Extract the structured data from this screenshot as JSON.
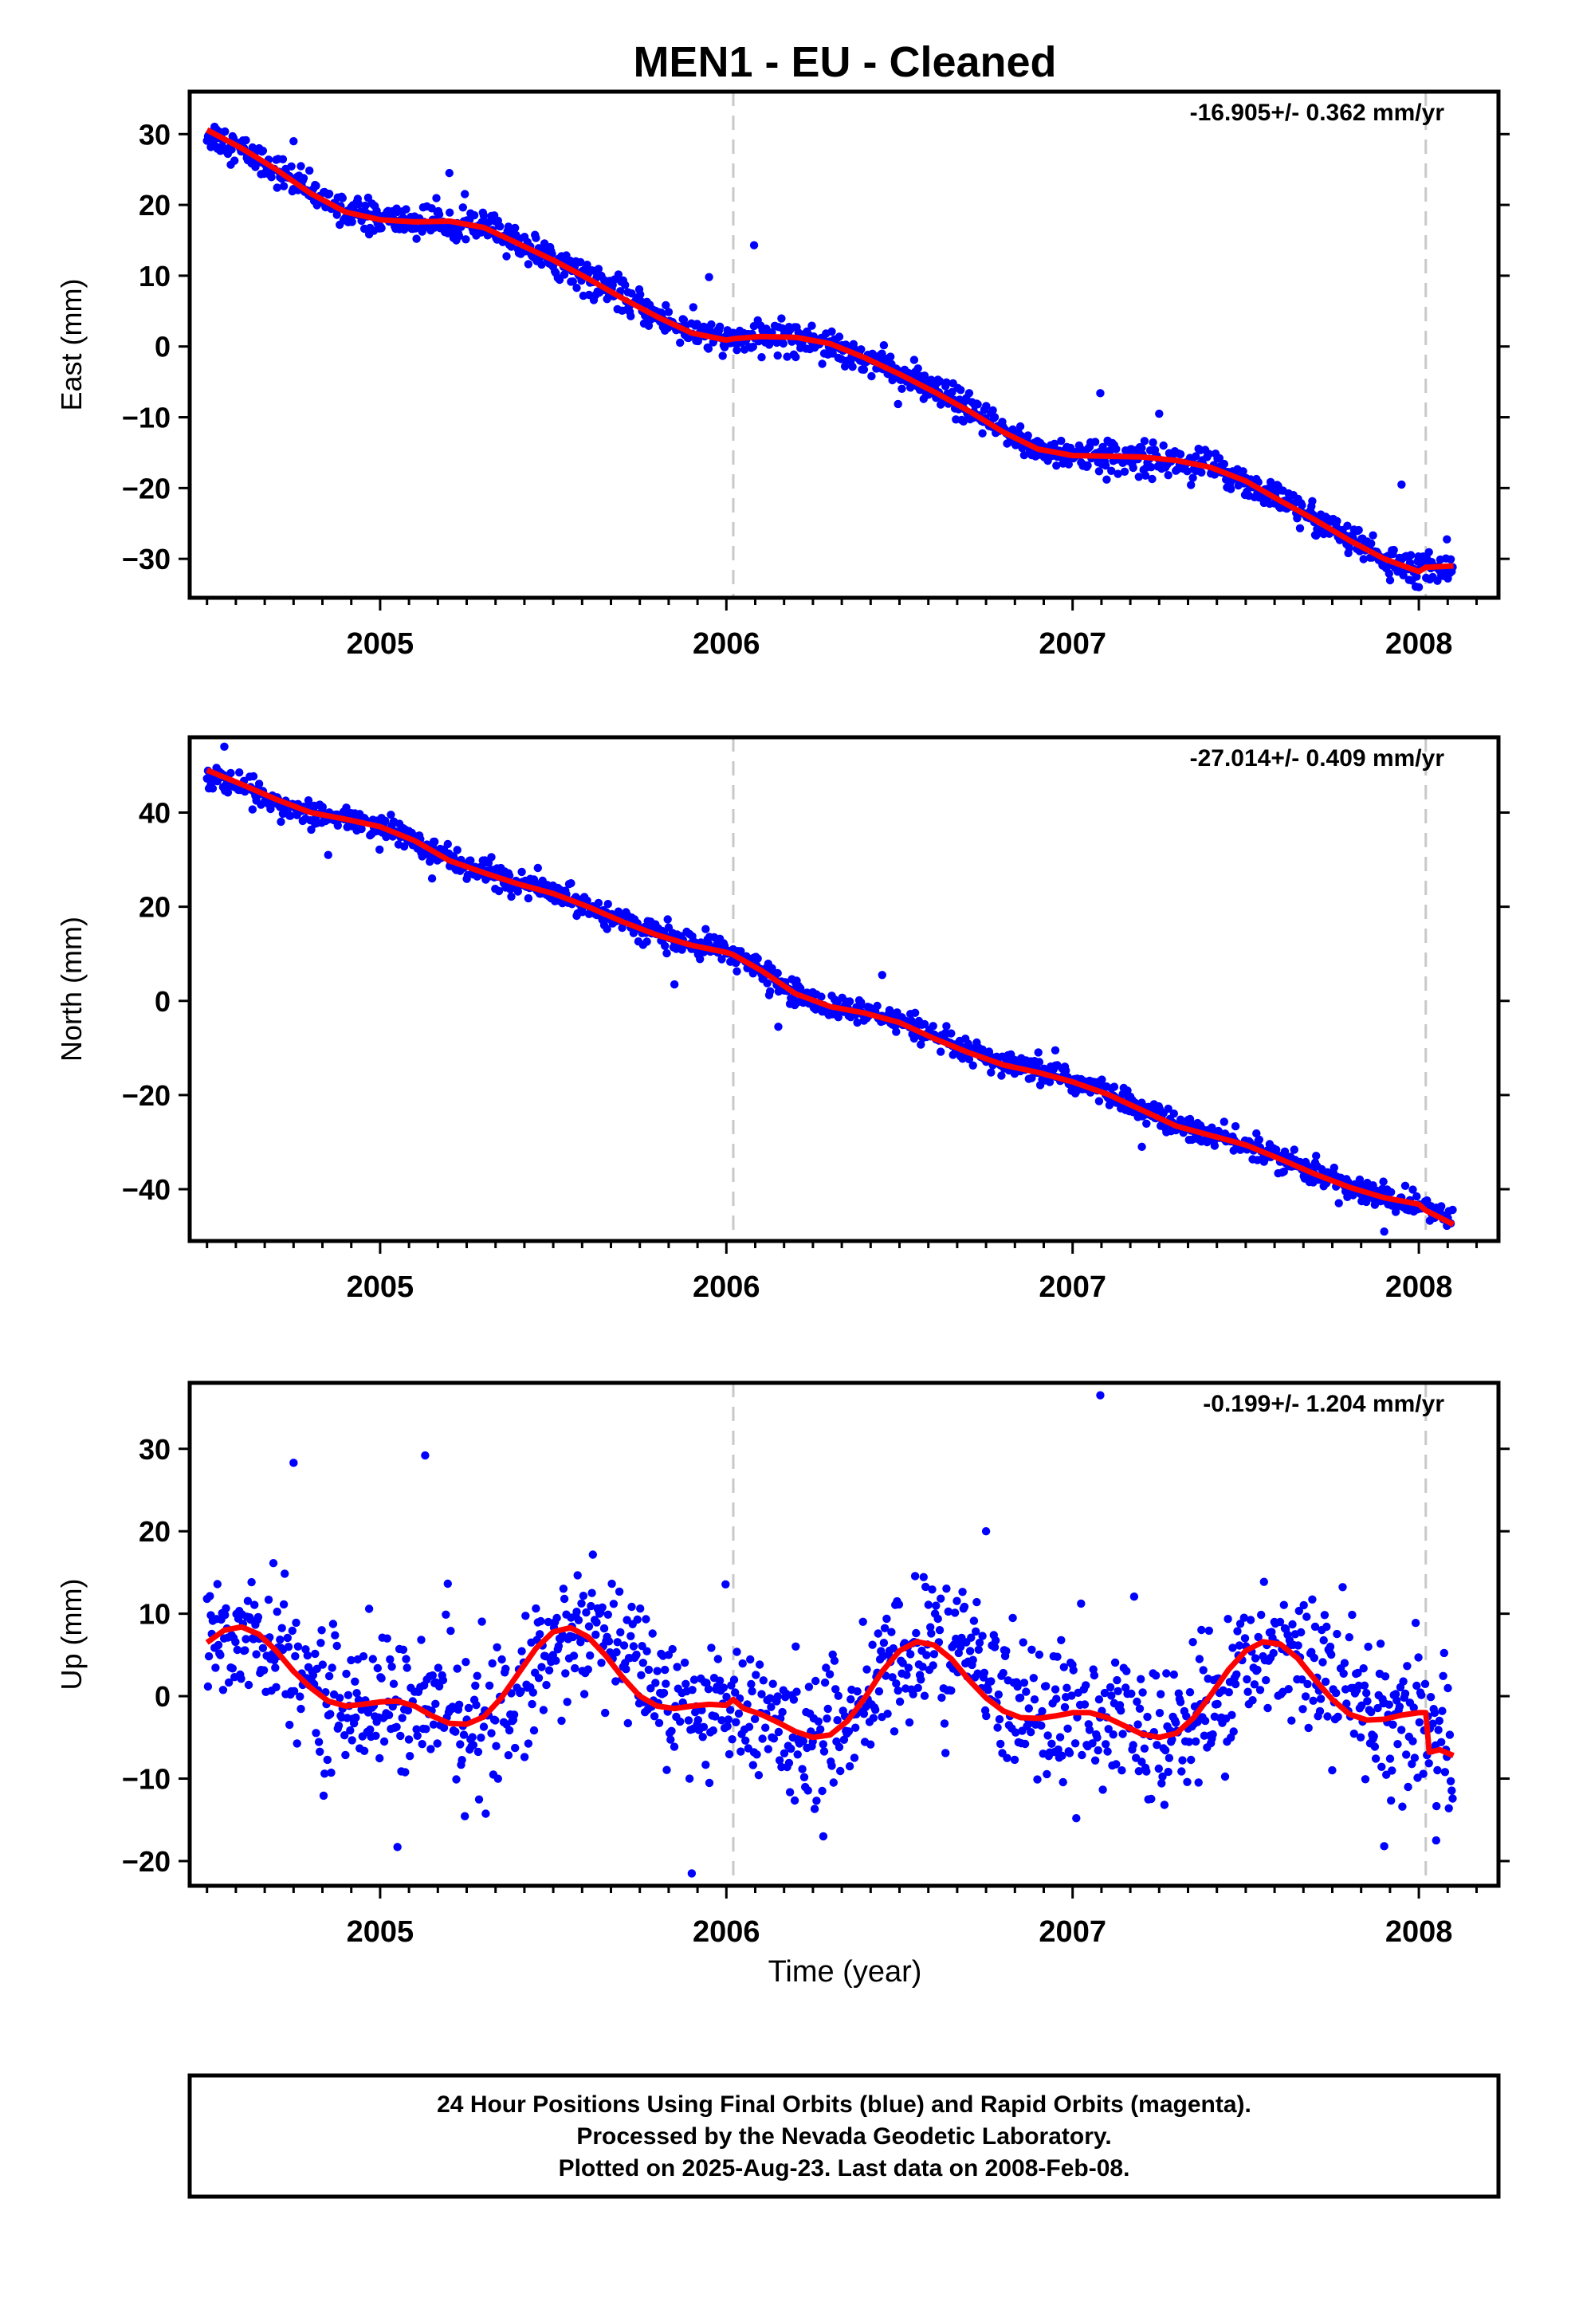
{
  "title": "MEN1  - EU - Cleaned",
  "xlabel": "Time (year)",
  "footer": {
    "line1": "24 Hour Positions Using Final Orbits (blue) and Rapid Orbits (magenta).",
    "line2": "Processed by the Nevada Geodetic Laboratory.",
    "line3": "Plotted on 2025-Aug-23. Last data on 2008-Feb-08."
  },
  "colors": {
    "points": "#0000ff",
    "model": "#ff0000",
    "epoch_lines": "#c8c8c8"
  },
  "chart_data": [
    {
      "type": "scatter",
      "component": "east",
      "ylabel": "East (mm)",
      "rate_label": "-16.905+/- 0.362 mm/yr",
      "xlim": [
        2004.45,
        2008.23
      ],
      "ylim": [
        -35.5,
        36
      ],
      "xticks": [
        2005,
        2006,
        2007,
        2008
      ],
      "yticks": [
        30,
        20,
        10,
        0,
        -10,
        -20,
        -30
      ],
      "ytick_labels": [
        "30",
        "20",
        "10",
        "0",
        "−10",
        "−20",
        "−30"
      ],
      "epoch_lines": [
        2006.02,
        2008.02
      ],
      "x": [
        2004.5,
        2004.6,
        2004.7,
        2004.8,
        2004.9,
        2005.0,
        2005.1,
        2005.2,
        2005.3,
        2005.4,
        2005.5,
        2005.6,
        2005.7,
        2005.8,
        2005.9,
        2006.0,
        2006.1,
        2006.2,
        2006.3,
        2006.4,
        2006.5,
        2006.6,
        2006.7,
        2006.8,
        2006.9,
        2007.0,
        2007.1,
        2007.2,
        2007.3,
        2007.4,
        2007.5,
        2007.6,
        2007.7,
        2007.8,
        2007.9,
        2008.0,
        2008.1
      ],
      "y": [
        30.2,
        27.8,
        25.0,
        21.8,
        19.2,
        18.0,
        17.6,
        17.7,
        16.9,
        14.6,
        12.4,
        9.7,
        6.9,
        4.3,
        2.0,
        1.0,
        1.4,
        1.3,
        0.5,
        -1.5,
        -3.8,
        -6.3,
        -9.0,
        -12.0,
        -14.4,
        -15.4,
        -15.6,
        -15.7,
        -16.2,
        -17.0,
        -19.0,
        -21.7,
        -24.4,
        -27.3,
        -30.1,
        -31.6,
        -31.0
      ],
      "outliers": [
        {
          "x": 2004.75,
          "y": 29.0
        },
        {
          "x": 2005.2,
          "y": 24.5
        },
        {
          "x": 2005.95,
          "y": 9.8
        },
        {
          "x": 2006.08,
          "y": 14.3
        },
        {
          "x": 2007.08,
          "y": -6.6
        },
        {
          "x": 2007.25,
          "y": -9.5
        },
        {
          "x": 2007.95,
          "y": -19.5
        },
        {
          "x": 2008.0,
          "y": -34.0
        }
      ],
      "model": [
        [
          2004.5,
          30.6
        ],
        [
          2004.6,
          28.0
        ],
        [
          2004.7,
          25.0
        ],
        [
          2004.8,
          21.6
        ],
        [
          2004.9,
          19.0
        ],
        [
          2005.0,
          17.9
        ],
        [
          2005.1,
          17.6
        ],
        [
          2005.2,
          17.7
        ],
        [
          2005.3,
          16.8
        ],
        [
          2005.4,
          14.5
        ],
        [
          2005.5,
          12.2
        ],
        [
          2005.6,
          9.6
        ],
        [
          2005.7,
          6.8
        ],
        [
          2005.8,
          4.2
        ],
        [
          2005.9,
          1.9
        ],
        [
          2006.0,
          0.9
        ],
        [
          2006.02,
          1.1
        ],
        [
          2006.1,
          1.4
        ],
        [
          2006.2,
          1.3
        ],
        [
          2006.3,
          0.4
        ],
        [
          2006.4,
          -1.6
        ],
        [
          2006.5,
          -3.9
        ],
        [
          2006.6,
          -6.4
        ],
        [
          2006.7,
          -9.1
        ],
        [
          2006.8,
          -12.1
        ],
        [
          2006.9,
          -14.5
        ],
        [
          2007.0,
          -15.4
        ],
        [
          2007.1,
          -15.5
        ],
        [
          2007.2,
          -15.6
        ],
        [
          2007.3,
          -16.1
        ],
        [
          2007.4,
          -17.1
        ],
        [
          2007.5,
          -19.0
        ],
        [
          2007.6,
          -21.8
        ],
        [
          2007.7,
          -24.5
        ],
        [
          2007.8,
          -27.4
        ],
        [
          2007.9,
          -30.0
        ],
        [
          2008.0,
          -31.8
        ],
        [
          2008.02,
          -31.2
        ],
        [
          2008.1,
          -31.0
        ]
      ]
    },
    {
      "type": "scatter",
      "component": "north",
      "ylabel": "North (mm)",
      "rate_label": "-27.014+/- 0.409 mm/yr",
      "xlim": [
        2004.45,
        2008.23
      ],
      "ylim": [
        -51,
        56
      ],
      "xticks": [
        2005,
        2006,
        2007,
        2008
      ],
      "yticks": [
        40,
        20,
        0,
        -20,
        -40
      ],
      "ytick_labels": [
        "40",
        "20",
        "0",
        "−20",
        "−40"
      ],
      "epoch_lines": [
        2006.02,
        2008.02
      ],
      "x": [
        2004.5,
        2004.6,
        2004.7,
        2004.8,
        2004.9,
        2005.0,
        2005.1,
        2005.2,
        2005.3,
        2005.4,
        2005.5,
        2005.6,
        2005.7,
        2005.8,
        2005.9,
        2006.0,
        2006.1,
        2006.2,
        2006.3,
        2006.4,
        2006.5,
        2006.6,
        2006.7,
        2006.8,
        2006.9,
        2007.0,
        2007.1,
        2007.2,
        2007.3,
        2007.4,
        2007.5,
        2007.6,
        2007.7,
        2007.8,
        2007.9,
        2008.0,
        2008.1
      ],
      "y": [
        48.0,
        45.5,
        42.5,
        39.8,
        38.5,
        37.0,
        34.2,
        30.0,
        27.5,
        25.0,
        23.0,
        20.3,
        17.0,
        14.2,
        12.0,
        10.5,
        6.5,
        1.5,
        -1.2,
        -2.5,
        -4.5,
        -8.0,
        -11.0,
        -13.5,
        -15.0,
        -17.0,
        -19.5,
        -23.0,
        -26.5,
        -28.5,
        -30.5,
        -33.5,
        -36.5,
        -39.5,
        -41.8,
        -43.5,
        -46.5
      ],
      "outliers": [
        {
          "x": 2004.55,
          "y": 54.0
        },
        {
          "x": 2004.85,
          "y": 31.0
        },
        {
          "x": 2005.15,
          "y": 26.0
        },
        {
          "x": 2005.85,
          "y": 3.5
        },
        {
          "x": 2006.15,
          "y": -5.5
        },
        {
          "x": 2006.45,
          "y": 5.5
        },
        {
          "x": 2006.95,
          "y": -10.5
        },
        {
          "x": 2007.2,
          "y": -31.0
        },
        {
          "x": 2007.9,
          "y": -49.0
        }
      ],
      "model": [
        [
          2004.5,
          49.0
        ],
        [
          2004.6,
          46.0
        ],
        [
          2004.7,
          42.8
        ],
        [
          2004.8,
          40.0
        ],
        [
          2004.9,
          38.6
        ],
        [
          2005.0,
          37.0
        ],
        [
          2005.1,
          34.0
        ],
        [
          2005.2,
          29.8
        ],
        [
          2005.3,
          27.2
        ],
        [
          2005.4,
          24.8
        ],
        [
          2005.5,
          22.8
        ],
        [
          2005.6,
          20.0
        ],
        [
          2005.7,
          16.8
        ],
        [
          2005.8,
          14.0
        ],
        [
          2005.9,
          11.8
        ],
        [
          2006.0,
          10.3
        ],
        [
          2006.02,
          9.8
        ],
        [
          2006.1,
          6.5
        ],
        [
          2006.2,
          1.5
        ],
        [
          2006.3,
          -1.2
        ],
        [
          2006.4,
          -2.6
        ],
        [
          2006.5,
          -4.6
        ],
        [
          2006.6,
          -8.0
        ],
        [
          2006.7,
          -11.0
        ],
        [
          2006.8,
          -13.6
        ],
        [
          2006.9,
          -15.2
        ],
        [
          2007.0,
          -17.2
        ],
        [
          2007.1,
          -19.8
        ],
        [
          2007.2,
          -23.2
        ],
        [
          2007.3,
          -26.6
        ],
        [
          2007.4,
          -28.6
        ],
        [
          2007.5,
          -30.6
        ],
        [
          2007.6,
          -33.6
        ],
        [
          2007.7,
          -36.8
        ],
        [
          2007.8,
          -39.6
        ],
        [
          2007.9,
          -41.8
        ],
        [
          2008.0,
          -43.2
        ],
        [
          2008.02,
          -44.5
        ],
        [
          2008.1,
          -47.5
        ]
      ]
    },
    {
      "type": "scatter",
      "component": "up",
      "ylabel": "Up (mm)",
      "rate_label": "-0.199+/- 1.204 mm/yr",
      "xlim": [
        2004.45,
        2008.23
      ],
      "ylim": [
        -23,
        38
      ],
      "xticks": [
        2005,
        2006,
        2007,
        2008
      ],
      "yticks": [
        30,
        20,
        10,
        0,
        -10,
        -20
      ],
      "ytick_labels": [
        "30",
        "20",
        "10",
        "0",
        "−10",
        "−20"
      ],
      "epoch_lines": [
        2006.02,
        2008.02
      ],
      "x": [
        2004.5,
        2004.6,
        2004.7,
        2004.8,
        2004.9,
        2005.0,
        2005.1,
        2005.2,
        2005.3,
        2005.4,
        2005.5,
        2005.6,
        2005.7,
        2005.8,
        2005.9,
        2006.0,
        2006.1,
        2006.2,
        2006.3,
        2006.4,
        2006.5,
        2006.6,
        2006.7,
        2006.8,
        2006.9,
        2007.0,
        2007.1,
        2007.2,
        2007.3,
        2007.4,
        2007.5,
        2007.6,
        2007.7,
        2007.8,
        2007.9,
        2008.0,
        2008.1
      ],
      "y": [
        6.5,
        8.2,
        5.5,
        1.5,
        -1.0,
        -0.8,
        -0.8,
        -2.5,
        -3.2,
        0.5,
        5.5,
        8.0,
        5.5,
        1.5,
        -1.2,
        -1.5,
        -2.5,
        -4.0,
        -4.5,
        -0.5,
        4.0,
        6.5,
        5.0,
        0.5,
        -2.5,
        -2.0,
        -2.5,
        -4.2,
        -4.8,
        -2.0,
        3.5,
        6.5,
        5.5,
        0.5,
        -2.8,
        -2.5,
        -7.0
      ],
      "outliers": [
        {
          "x": 2004.75,
          "y": 28.3
        },
        {
          "x": 2005.13,
          "y": 29.2
        },
        {
          "x": 2005.05,
          "y": -18.3
        },
        {
          "x": 2005.9,
          "y": -21.5
        },
        {
          "x": 2006.28,
          "y": -17.0
        },
        {
          "x": 2006.75,
          "y": 20.0
        },
        {
          "x": 2007.08,
          "y": 36.5
        },
        {
          "x": 2007.9,
          "y": -18.2
        },
        {
          "x": 2008.05,
          "y": -17.5
        }
      ],
      "model": [
        [
          2004.5,
          6.5
        ],
        [
          2004.55,
          8.0
        ],
        [
          2004.6,
          8.4
        ],
        [
          2004.65,
          7.5
        ],
        [
          2004.7,
          5.5
        ],
        [
          2004.75,
          3.0
        ],
        [
          2004.8,
          1.0
        ],
        [
          2004.85,
          -0.6
        ],
        [
          2004.9,
          -1.2
        ],
        [
          2004.95,
          -1.0
        ],
        [
          2005.0,
          -0.7
        ],
        [
          2005.05,
          -0.6
        ],
        [
          2005.1,
          -1.2
        ],
        [
          2005.15,
          -2.4
        ],
        [
          2005.2,
          -3.3
        ],
        [
          2005.25,
          -3.4
        ],
        [
          2005.3,
          -2.5
        ],
        [
          2005.35,
          -0.2
        ],
        [
          2005.4,
          2.8
        ],
        [
          2005.45,
          5.8
        ],
        [
          2005.5,
          7.8
        ],
        [
          2005.55,
          8.3
        ],
        [
          2005.6,
          7.2
        ],
        [
          2005.65,
          5.0
        ],
        [
          2005.7,
          2.3
        ],
        [
          2005.75,
          0.0
        ],
        [
          2005.8,
          -1.2
        ],
        [
          2005.85,
          -1.5
        ],
        [
          2005.9,
          -1.2
        ],
        [
          2005.95,
          -1.0
        ],
        [
          2006.0,
          -1.1
        ],
        [
          2006.02,
          -0.4
        ],
        [
          2006.05,
          -1.5
        ],
        [
          2006.1,
          -2.2
        ],
        [
          2006.15,
          -3.2
        ],
        [
          2006.2,
          -4.3
        ],
        [
          2006.25,
          -5.0
        ],
        [
          2006.3,
          -4.7
        ],
        [
          2006.35,
          -3.0
        ],
        [
          2006.4,
          -0.2
        ],
        [
          2006.45,
          3.0
        ],
        [
          2006.5,
          5.5
        ],
        [
          2006.55,
          6.6
        ],
        [
          2006.6,
          6.2
        ],
        [
          2006.65,
          4.5
        ],
        [
          2006.7,
          2.0
        ],
        [
          2006.75,
          -0.2
        ],
        [
          2006.8,
          -1.8
        ],
        [
          2006.85,
          -2.6
        ],
        [
          2006.9,
          -2.7
        ],
        [
          2006.95,
          -2.4
        ],
        [
          2007.0,
          -2.0
        ],
        [
          2007.05,
          -2.0
        ],
        [
          2007.1,
          -2.6
        ],
        [
          2007.15,
          -3.6
        ],
        [
          2007.2,
          -4.6
        ],
        [
          2007.25,
          -5.0
        ],
        [
          2007.3,
          -4.5
        ],
        [
          2007.35,
          -2.6
        ],
        [
          2007.4,
          0.2
        ],
        [
          2007.45,
          3.2
        ],
        [
          2007.5,
          5.5
        ],
        [
          2007.55,
          6.6
        ],
        [
          2007.6,
          6.3
        ],
        [
          2007.65,
          4.6
        ],
        [
          2007.7,
          2.0
        ],
        [
          2007.75,
          -0.4
        ],
        [
          2007.8,
          -2.2
        ],
        [
          2007.85,
          -2.9
        ],
        [
          2007.9,
          -2.8
        ],
        [
          2007.95,
          -2.3
        ],
        [
          2008.0,
          -2.0
        ],
        [
          2008.02,
          -2.0
        ],
        [
          2008.03,
          -6.8
        ],
        [
          2008.06,
          -6.5
        ],
        [
          2008.1,
          -7.2
        ]
      ]
    }
  ]
}
